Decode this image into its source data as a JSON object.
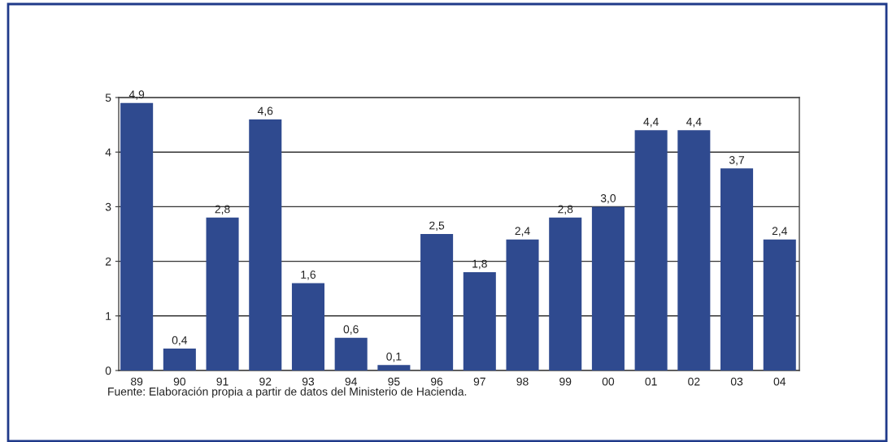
{
  "chart_data": {
    "type": "bar",
    "categories": [
      "89",
      "90",
      "91",
      "92",
      "93",
      "94",
      "95",
      "96",
      "97",
      "98",
      "99",
      "00",
      "01",
      "02",
      "03",
      "04"
    ],
    "values": [
      4.9,
      0.4,
      2.8,
      4.6,
      1.6,
      0.6,
      0.1,
      2.5,
      1.8,
      2.4,
      2.8,
      3.0,
      4.4,
      4.4,
      3.7,
      2.4
    ],
    "value_labels": [
      "4,9",
      "0,4",
      "2,8",
      "4,6",
      "1,6",
      "0,6",
      "0,1",
      "2,5",
      "1,8",
      "2,4",
      "2,8",
      "3,0",
      "4,4",
      "4,4",
      "3,7",
      "2,4"
    ],
    "color": "#2f4a8f",
    "ylim": [
      0,
      5
    ],
    "yticks": [
      0,
      1,
      2,
      3,
      4,
      5
    ],
    "grid": "y",
    "legend": false,
    "annotations": [
      "Fuente: Elaboración propia a partir de datos del Ministerio de Hacienda."
    ]
  }
}
